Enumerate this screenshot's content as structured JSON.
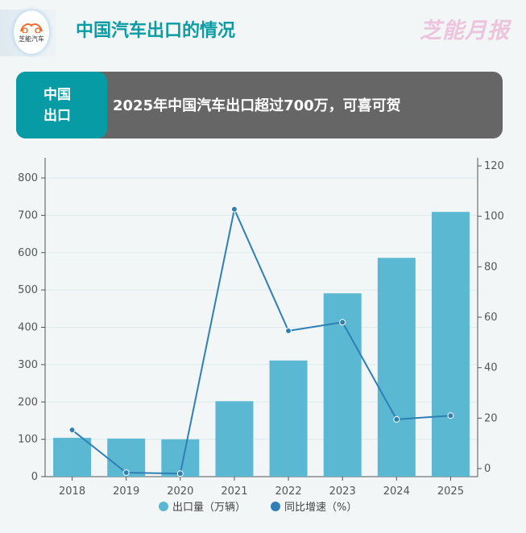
{
  "header": {
    "logo_text": "芝能汽车",
    "title": "中国汽车出口的情况",
    "brand": "芝能月报"
  },
  "banner": {
    "tag_line1": "中国",
    "tag_line2": "出口",
    "text": "2025年中国汽车出口超过700万，可喜可贺"
  },
  "colors": {
    "bar": "#5ab8d2",
    "line": "#2f7fb5",
    "accent": "#079ca5"
  },
  "chart_data": {
    "type": "bar+line",
    "categories": [
      "2018",
      "2019",
      "2020",
      "2021",
      "2022",
      "2023",
      "2024",
      "2025"
    ],
    "series": [
      {
        "name": "出口量（万辆）",
        "type": "bar",
        "axis": "left",
        "values": [
          104,
          102,
          100,
          202,
          311,
          491,
          586,
          709
        ]
      },
      {
        "name": "同比增速（%）",
        "type": "line",
        "axis": "right",
        "values": [
          15.3,
          -1.6,
          -2.0,
          102.8,
          54.6,
          58.0,
          19.5,
          21.0
        ]
      }
    ],
    "y_left": {
      "range": [
        0,
        800
      ],
      "ticks": [
        "0",
        "100",
        "200",
        "300",
        "400",
        "500",
        "600",
        "700",
        "800"
      ]
    },
    "y_right": {
      "range": [
        0,
        120
      ],
      "ticks": [
        "0",
        "20",
        "40",
        "60",
        "80",
        "100",
        "120"
      ]
    },
    "grid": true,
    "legend_position": "bottom"
  }
}
